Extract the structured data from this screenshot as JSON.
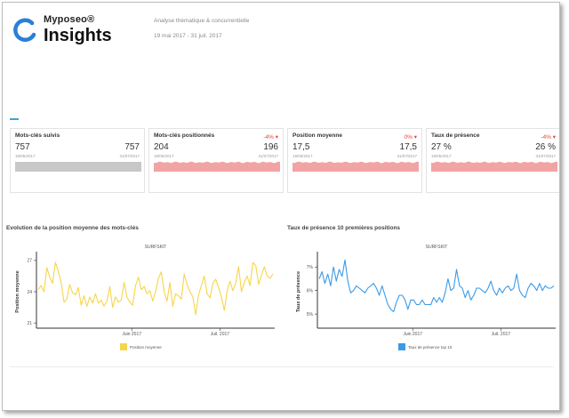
{
  "brand": {
    "name_top": "Myposeo®",
    "name_main": "Insights"
  },
  "header": {
    "subtitle": "Analyse thématique & concurrentielle",
    "date_range": "19 mai 2017 - 31 juil. 2017"
  },
  "kpis": [
    {
      "title": "Mots-clés suivis",
      "delta": "",
      "start_value": "757",
      "end_value": "757",
      "start_date": "19/05/2017",
      "end_date": "31/07/2017",
      "color": "#c8c8c8"
    },
    {
      "title": "Mots-clés positionnés",
      "delta": "-4% ▾",
      "start_value": "204",
      "end_value": "196",
      "start_date": "19/05/2017",
      "end_date": "31/07/2017",
      "color": "#f2a3a3"
    },
    {
      "title": "Position moyenne",
      "delta": "0% ▾",
      "start_value": "17,5",
      "end_value": "17,5",
      "start_date": "19/05/2017",
      "end_date": "31/07/2017",
      "color": "#f2a3a3"
    },
    {
      "title": "Taux de présence",
      "delta": "-4% ▾",
      "start_value": "27 %",
      "end_value": "26 %",
      "start_date": "19/05/2017",
      "end_date": "31/07/2017",
      "color": "#f2a3a3"
    }
  ],
  "chart_data": [
    {
      "type": "line",
      "title": "Evolution de la position moyenne des mots-clés",
      "subtitle": "SURFSKIT",
      "xlabel": "",
      "ylabel": "Position moyenne",
      "yticks": [
        "27",
        "24",
        "21"
      ],
      "ylim": [
        20.5,
        27.5
      ],
      "xticks": [
        "Juin 2017",
        "Juil. 2017"
      ],
      "color": "#f7d54a",
      "series": [
        {
          "name": "Position moyenne",
          "values": [
            24.2,
            24.6,
            24.0,
            26.3,
            25.4,
            24.8,
            26.8,
            26.0,
            24.9,
            23.0,
            23.3,
            24.7,
            23.9,
            23.7,
            24.4,
            22.7,
            23.6,
            22.6,
            23.5,
            22.9,
            23.8,
            22.9,
            23.2,
            22.6,
            23.1,
            24.5,
            22.5,
            23.5,
            23.0,
            23.2,
            24.9,
            23.5,
            23.0,
            22.7,
            24.6,
            25.4,
            24.2,
            24.5,
            23.8,
            24.1,
            23.1,
            24.0,
            25.3,
            25.9,
            24.0,
            23.1,
            24.9,
            22.6,
            23.8,
            23.6,
            23.3,
            25.7,
            24.7,
            24.0,
            23.5,
            21.8,
            23.7,
            24.6,
            25.5,
            23.8,
            23.4,
            24.8,
            25.2,
            24.4,
            23.5,
            22.2,
            24.1,
            25.0,
            24.1,
            24.8,
            26.4,
            24.0,
            24.9,
            25.5,
            24.6,
            26.8,
            26.5,
            24.7,
            25.6,
            26.4,
            25.5,
            25.3,
            25.7
          ]
        }
      ]
    },
    {
      "type": "line",
      "title": "Taux de présence 10 premières positions",
      "subtitle": "SURFSKIT",
      "xlabel": "",
      "ylabel": "Taux de présence",
      "yticks": [
        "7%",
        "6%",
        "5%"
      ],
      "ylim": [
        4.4,
        7.5
      ],
      "xticks": [
        "Juin 2017",
        "Juil. 2017"
      ],
      "color": "#3a9be8",
      "series": [
        {
          "name": "Taux de présence top 10",
          "values": [
            6.5,
            6.8,
            6.3,
            6.7,
            6.2,
            7.0,
            6.4,
            6.9,
            6.6,
            7.3,
            6.4,
            5.9,
            6.0,
            6.2,
            6.1,
            6.0,
            5.9,
            6.1,
            6.2,
            6.3,
            6.1,
            5.8,
            6.2,
            5.8,
            5.4,
            5.2,
            5.1,
            5.5,
            5.8,
            5.8,
            5.6,
            5.2,
            5.6,
            5.6,
            5.4,
            5.4,
            5.6,
            5.4,
            5.4,
            5.4,
            5.7,
            5.5,
            5.7,
            5.5,
            5.9,
            6.5,
            6.0,
            6.1,
            6.9,
            6.2,
            6.1,
            5.7,
            6.0,
            5.6,
            5.8,
            6.1,
            6.1,
            6.0,
            5.9,
            6.1,
            6.4,
            6.0,
            5.8,
            6.1,
            5.9,
            6.1,
            6.2,
            6.0,
            6.1,
            6.7,
            6.0,
            5.8,
            5.7,
            6.1,
            6.3,
            6.2,
            6.0,
            6.3,
            6.0,
            6.2,
            6.1,
            6.1,
            6.2
          ]
        }
      ]
    }
  ]
}
